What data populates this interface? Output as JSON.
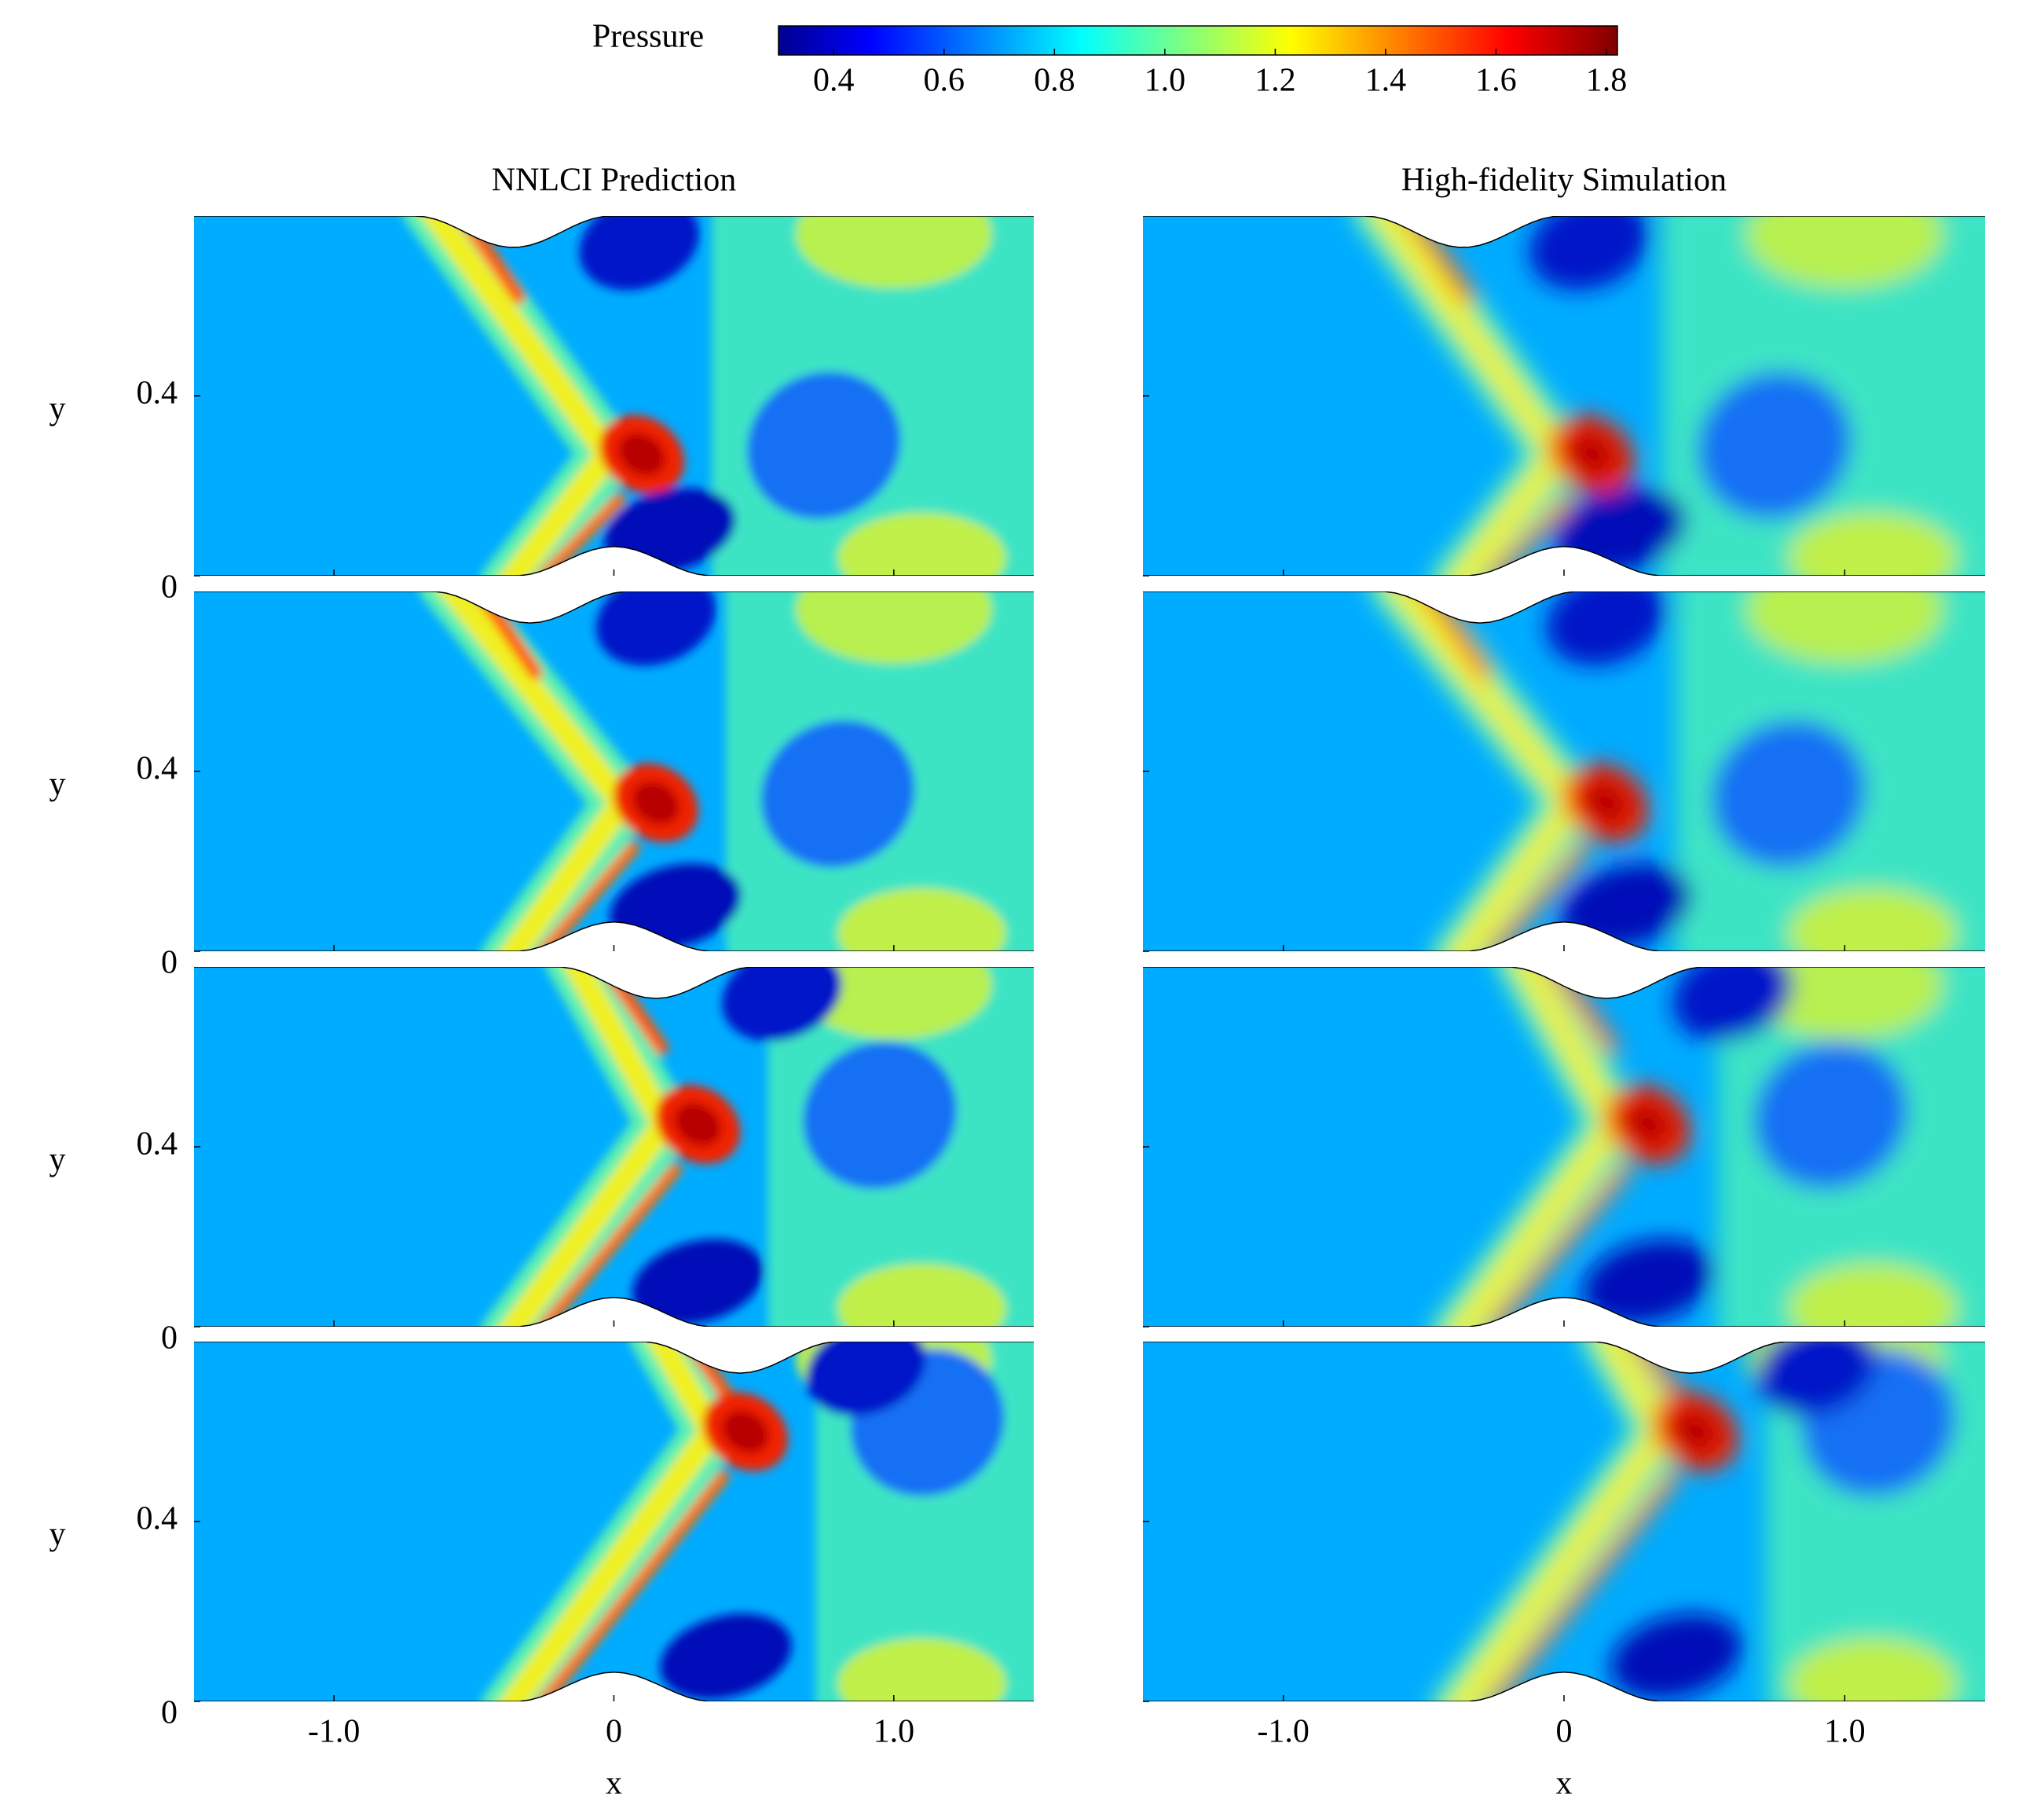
{
  "chart_data": {
    "type": "contour",
    "colorbar": {
      "label": "Pressure",
      "colormap": "jet",
      "clim": [
        0.3,
        1.82
      ],
      "ticks": [
        0.4,
        0.6,
        0.8,
        {
          "value": 1,
          "label": "1.0"
        },
        1.2,
        1.4,
        1.6,
        1.8
      ]
    },
    "column_titles": [
      "NNLCI Prediction",
      "High-fidelity Simulation"
    ],
    "xlabel": "x",
    "ylabel": "y",
    "xlim": [
      -1.5,
      1.5
    ],
    "ylim": [
      0,
      0.8
    ],
    "xticks": [
      {
        "value": -1,
        "label": "-1.0"
      },
      0,
      {
        "value": 1,
        "label": "1.0"
      }
    ],
    "yticks": [
      0,
      0.4
    ]
  }
}
